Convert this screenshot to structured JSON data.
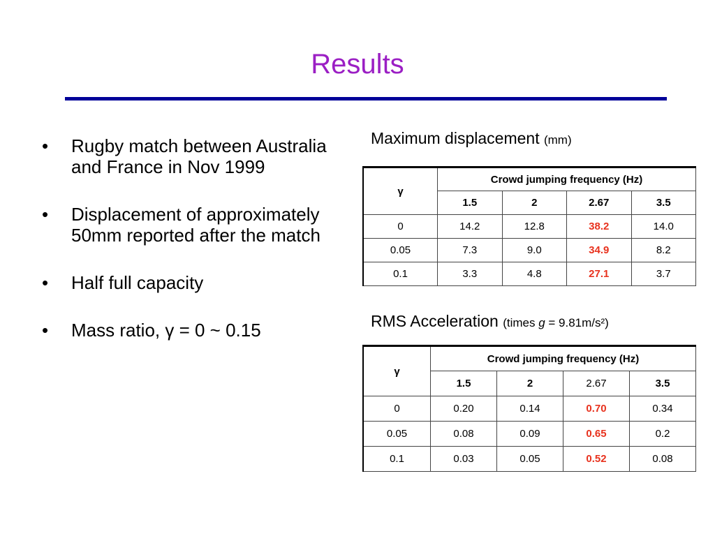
{
  "title": "Results",
  "bullets": [
    "Rugby match between Australia and France in Nov 1999",
    "Displacement of approximately 50mm reported after the match",
    "Half full capacity",
    "Mass ratio, γ = 0 ~ 0.15"
  ],
  "tables": [
    {
      "caption": "Maximum displacement",
      "caption_note": [
        "(mm)"
      ],
      "corner": "γ",
      "group_header": "Crowd jumping frequency (Hz)",
      "columns": [
        "1.5",
        "2",
        "2.67",
        "3.5"
      ],
      "rows": [
        [
          "0",
          "14.2",
          "12.8",
          "38.2",
          "14.0"
        ],
        [
          "0.05",
          "7.3",
          "9.0",
          "34.9",
          "8.2"
        ],
        [
          "0.1",
          "3.3",
          "4.8",
          "27.1",
          "3.7"
        ]
      ]
    },
    {
      "caption": "RMS Acceleration",
      "caption_note": [
        "(times ",
        "g",
        " = 9.81m/s²)"
      ],
      "corner": "γ",
      "group_header": "Crowd jumping frequency (Hz)",
      "columns": [
        "1.5",
        "2",
        "2.67",
        "3.5"
      ],
      "rows": [
        [
          "0",
          "0.20",
          "0.14",
          "0.70",
          "0.34"
        ],
        [
          "0.05",
          "0.08",
          "0.09",
          "0.65",
          "0.2"
        ],
        [
          "0.1",
          "0.03",
          "0.05",
          "0.52",
          "0.08"
        ]
      ]
    }
  ]
}
